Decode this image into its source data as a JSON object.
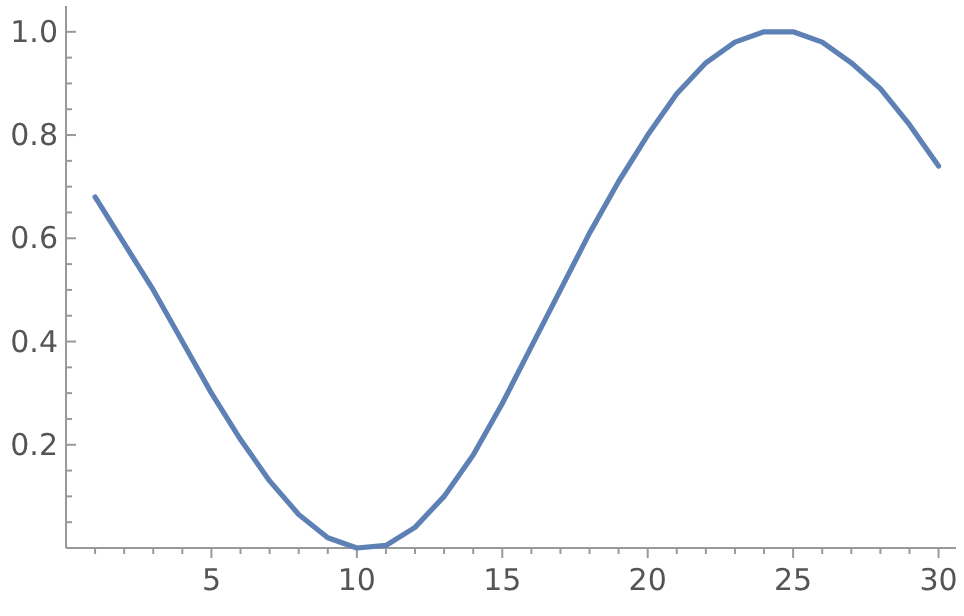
{
  "chart_data": {
    "type": "line",
    "x": [
      1,
      2,
      3,
      4,
      5,
      6,
      7,
      8,
      9,
      10,
      11,
      12,
      13,
      14,
      15,
      16,
      17,
      18,
      19,
      20,
      21,
      22,
      23,
      24,
      25,
      26,
      27,
      28,
      29,
      30
    ],
    "series": [
      {
        "color": "#5e81b5",
        "values": [
          0.68,
          0.59,
          0.5,
          0.4,
          0.3,
          0.21,
          0.13,
          0.065,
          0.02,
          0.0,
          0.005,
          0.04,
          0.1,
          0.18,
          0.28,
          0.39,
          0.5,
          0.61,
          0.71,
          0.8,
          0.88,
          0.94,
          0.98,
          1.0,
          1.0,
          0.98,
          0.94,
          0.89,
          0.82,
          0.74
        ]
      }
    ],
    "xlim": [
      0,
      30.6
    ],
    "ylim": [
      0,
      1.05
    ],
    "xticks": [
      {
        "value": 1,
        "label": null
      },
      {
        "value": 2,
        "label": null
      },
      {
        "value": 3,
        "label": null
      },
      {
        "value": 4,
        "label": null
      },
      5,
      {
        "value": 6,
        "label": null
      },
      {
        "value": 7,
        "label": null
      },
      {
        "value": 8,
        "label": null
      },
      {
        "value": 9,
        "label": null
      },
      10,
      {
        "value": 11,
        "label": null
      },
      {
        "value": 12,
        "label": null
      },
      {
        "value": 13,
        "label": null
      },
      {
        "value": 14,
        "label": null
      },
      15,
      {
        "value": 16,
        "label": null
      },
      {
        "value": 17,
        "label": null
      },
      {
        "value": 18,
        "label": null
      },
      {
        "value": 19,
        "label": null
      },
      20,
      {
        "value": 21,
        "label": null
      },
      {
        "value": 22,
        "label": null
      },
      {
        "value": 23,
        "label": null
      },
      {
        "value": 24,
        "label": null
      },
      25,
      {
        "value": 26,
        "label": null
      },
      {
        "value": 27,
        "label": null
      },
      {
        "value": 28,
        "label": null
      },
      {
        "value": 29,
        "label": null
      },
      30
    ],
    "yticks": [
      {
        "value": 0.05,
        "label": null
      },
      {
        "value": 0.1,
        "label": null
      },
      {
        "value": 0.15,
        "label": null
      },
      {
        "value": 0.2,
        "label": "0.2"
      },
      {
        "value": 0.25,
        "label": null
      },
      {
        "value": 0.3,
        "label": null
      },
      {
        "value": 0.35,
        "label": null
      },
      {
        "value": 0.4,
        "label": "0.4"
      },
      {
        "value": 0.45,
        "label": null
      },
      {
        "value": 0.5,
        "label": null
      },
      {
        "value": 0.55,
        "label": null
      },
      {
        "value": 0.6,
        "label": "0.6"
      },
      {
        "value": 0.65,
        "label": null
      },
      {
        "value": 0.7,
        "label": null
      },
      {
        "value": 0.75,
        "label": null
      },
      {
        "value": 0.8,
        "label": "0.8"
      },
      {
        "value": 0.85,
        "label": null
      },
      {
        "value": 0.9,
        "label": null
      },
      {
        "value": 0.95,
        "label": null
      },
      {
        "value": 1,
        "label": "1.0"
      }
    ],
    "grid": false,
    "marker": "none",
    "line_style": "solid"
  }
}
